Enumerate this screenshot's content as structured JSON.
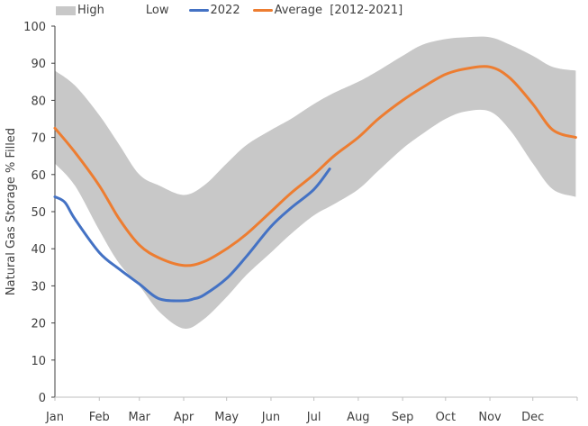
{
  "chart_data": {
    "type": "area",
    "title": "",
    "xlabel": "",
    "ylabel": "Natural Gas Storage % Filled",
    "ylim": [
      0,
      100
    ],
    "yticks": [
      0,
      10,
      20,
      30,
      40,
      50,
      60,
      70,
      80,
      90,
      100
    ],
    "xticks": [
      "Jan",
      "Feb",
      "Mar",
      "Apr",
      "May",
      "Jun",
      "Jul",
      "Aug",
      "Sep",
      "Oct",
      "Nov",
      "Dec"
    ],
    "grid": false,
    "legend_position": "top",
    "legend": [
      "High",
      "Low",
      "2022",
      "Average  [2012-2021]"
    ],
    "colors": {
      "band": "#c8c8c8",
      "2022": "#4472c4",
      "average": "#ed7d31"
    },
    "x_units": "date (month-day)",
    "band": {
      "x": [
        "01-01",
        "01-15",
        "02-01",
        "02-15",
        "03-01",
        "03-15",
        "04-01",
        "04-15",
        "05-01",
        "05-15",
        "06-01",
        "06-15",
        "07-01",
        "07-15",
        "08-01",
        "08-15",
        "09-01",
        "09-15",
        "10-01",
        "10-15",
        "11-01",
        "11-15",
        "12-01",
        "12-15",
        "12-31"
      ],
      "high": [
        88,
        84,
        76,
        68,
        60,
        57,
        54.5,
        57,
        63,
        68,
        72,
        75,
        79,
        82,
        85,
        88,
        92,
        95,
        96.5,
        97,
        97,
        95,
        92,
        89,
        88
      ],
      "low": [
        63,
        57,
        45,
        36,
        30,
        23,
        18.5,
        21,
        27,
        33,
        39,
        44,
        49,
        52,
        56,
        61,
        67,
        71,
        75,
        77,
        77,
        72,
        63,
        56,
        54
      ]
    },
    "series": [
      {
        "name": "2022",
        "x": [
          "01-01",
          "01-08",
          "01-15",
          "02-01",
          "02-15",
          "03-01",
          "03-15",
          "04-01",
          "04-08",
          "04-15",
          "05-01",
          "05-15",
          "06-01",
          "06-15",
          "07-01",
          "07-12"
        ],
        "values": [
          54,
          52.5,
          48,
          39,
          34.5,
          30.5,
          26.5,
          26,
          26.5,
          27.5,
          32,
          38,
          46,
          51,
          56,
          61.5
        ]
      },
      {
        "name": "Average  [2012-2021]",
        "x": [
          "01-01",
          "01-15",
          "02-01",
          "02-15",
          "03-01",
          "03-15",
          "04-01",
          "04-15",
          "05-01",
          "05-15",
          "06-01",
          "06-15",
          "07-01",
          "07-15",
          "08-01",
          "08-15",
          "09-01",
          "09-15",
          "10-01",
          "10-15",
          "11-01",
          "11-15",
          "12-01",
          "12-15",
          "12-31"
        ],
        "values": [
          72.5,
          66,
          57,
          48,
          41,
          37.5,
          35.5,
          36.5,
          40,
          44,
          50,
          55,
          60,
          65,
          70,
          75,
          80,
          83.5,
          87,
          88.5,
          89,
          86,
          79,
          72,
          70
        ]
      }
    ]
  }
}
